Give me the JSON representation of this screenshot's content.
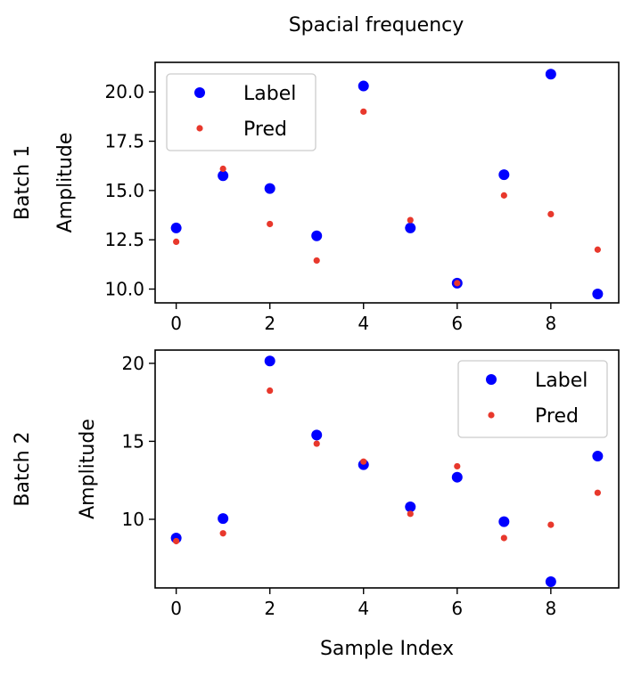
{
  "figure": {
    "title": "Spacial frequency"
  },
  "colors": {
    "label_marker": "#0000ff",
    "pred_marker": "#e8382c"
  },
  "chart_data": [
    {
      "type": "scatter",
      "row_label": "Batch 1",
      "ylabel": "Amplitude",
      "xlabel": "",
      "xlim": [
        -0.45,
        9.45
      ],
      "ylim": [
        9.3,
        21.5
      ],
      "xticks": [
        0,
        2,
        4,
        6,
        8
      ],
      "yticks": [
        10.0,
        12.5,
        15.0,
        17.5,
        20.0
      ],
      "ytick_labels": [
        "10.0",
        "12.5",
        "15.0",
        "17.5",
        "20.0"
      ],
      "legend": {
        "placement": "upper-left",
        "entries": [
          "Label",
          "Pred"
        ]
      },
      "x": [
        0,
        1,
        2,
        3,
        4,
        5,
        6,
        7,
        8,
        9
      ],
      "series": [
        {
          "name": "Label",
          "marker": "large-dot",
          "values": [
            13.1,
            15.75,
            15.1,
            12.7,
            20.3,
            13.1,
            10.3,
            15.8,
            20.9,
            9.75
          ]
        },
        {
          "name": "Pred",
          "marker": "small-dot",
          "values": [
            12.4,
            16.1,
            13.3,
            11.45,
            19.0,
            13.5,
            10.3,
            14.75,
            13.8,
            12.0
          ]
        }
      ]
    },
    {
      "type": "scatter",
      "row_label": "Batch 2",
      "ylabel": "Amplitude",
      "xlabel": "Sample Index",
      "xlim": [
        -0.45,
        9.45
      ],
      "ylim": [
        5.6,
        20.85
      ],
      "xticks": [
        0,
        2,
        4,
        6,
        8
      ],
      "yticks": [
        10,
        15,
        20
      ],
      "ytick_labels": [
        "10",
        "15",
        "20"
      ],
      "legend": {
        "placement": "upper-right",
        "entries": [
          "Label",
          "Pred"
        ]
      },
      "x": [
        0,
        1,
        2,
        3,
        4,
        5,
        6,
        7,
        8,
        9
      ],
      "series": [
        {
          "name": "Label",
          "marker": "large-dot",
          "values": [
            8.8,
            10.05,
            20.15,
            15.4,
            13.5,
            10.8,
            12.7,
            9.85,
            6.0,
            14.05
          ]
        },
        {
          "name": "Pred",
          "marker": "small-dot",
          "values": [
            8.6,
            9.1,
            18.25,
            14.85,
            13.7,
            10.35,
            13.4,
            8.8,
            9.65,
            11.7
          ]
        }
      ]
    }
  ]
}
